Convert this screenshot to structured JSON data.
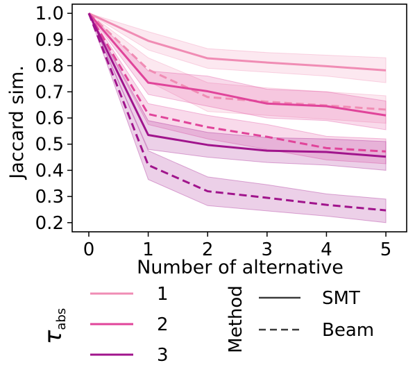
{
  "chart_data": {
    "type": "line",
    "xlabel": "Number of alternative",
    "ylabel": "Jaccard sim.",
    "xlim": [
      -0.28,
      5.35
    ],
    "ylim": [
      0.165,
      1.035
    ],
    "xticks": [
      0,
      1,
      2,
      3,
      4,
      5
    ],
    "xtick_labels": [
      "0",
      "1",
      "2",
      "3",
      "4",
      "5"
    ],
    "yticks": [
      0.2,
      0.3,
      0.4,
      0.5,
      0.6,
      0.7,
      0.8,
      0.9,
      1.0
    ],
    "ytick_labels": [
      "0.2",
      "0.3",
      "0.4",
      "0.5",
      "0.6",
      "0.7",
      "0.8",
      "0.9",
      "1.0"
    ],
    "grid": false,
    "x": [
      0,
      1,
      2,
      3,
      4,
      5
    ],
    "series": [
      {
        "tau": "1",
        "method": "SMT",
        "color": "#f08cb4",
        "dash": "solid",
        "values": [
          1.0,
          0.895,
          0.828,
          0.812,
          0.798,
          0.782
        ],
        "lower": [
          1.0,
          0.86,
          0.79,
          0.775,
          0.76,
          0.735
        ],
        "upper": [
          1.0,
          0.93,
          0.865,
          0.85,
          0.84,
          0.83
        ]
      },
      {
        "tau": "1",
        "method": "Beam",
        "color": "#f08cb4",
        "dash": "dashed",
        "values": [
          1.0,
          0.785,
          0.68,
          0.662,
          0.648,
          0.632
        ],
        "lower": [
          1.0,
          0.74,
          0.625,
          0.61,
          0.595,
          0.58
        ],
        "upper": [
          1.0,
          0.83,
          0.735,
          0.715,
          0.7,
          0.685
        ]
      },
      {
        "tau": "2",
        "method": "SMT",
        "color": "#e0449a",
        "dash": "solid",
        "values": [
          1.0,
          0.735,
          0.702,
          0.655,
          0.645,
          0.61
        ],
        "lower": [
          1.0,
          0.69,
          0.645,
          0.6,
          0.59,
          0.555
        ],
        "upper": [
          1.0,
          0.78,
          0.76,
          0.71,
          0.7,
          0.665
        ]
      },
      {
        "tau": "2",
        "method": "Beam",
        "color": "#e0449a",
        "dash": "dashed",
        "values": [
          1.0,
          0.615,
          0.565,
          0.528,
          0.485,
          0.472
        ],
        "lower": [
          1.0,
          0.575,
          0.52,
          0.48,
          0.44,
          0.425
        ],
        "upper": [
          1.0,
          0.655,
          0.61,
          0.575,
          0.53,
          0.52
        ]
      },
      {
        "tau": "3",
        "method": "SMT",
        "color": "#a0148c",
        "dash": "solid",
        "values": [
          1.0,
          0.535,
          0.497,
          0.475,
          0.47,
          0.452
        ],
        "lower": [
          1.0,
          0.48,
          0.45,
          0.43,
          0.42,
          0.4
        ],
        "upper": [
          1.0,
          0.59,
          0.545,
          0.525,
          0.52,
          0.51
        ]
      },
      {
        "tau": "3",
        "method": "Beam",
        "color": "#a0148c",
        "dash": "dashed",
        "values": [
          1.0,
          0.42,
          0.32,
          0.295,
          0.268,
          0.247
        ],
        "lower": [
          1.0,
          0.365,
          0.265,
          0.245,
          0.225,
          0.2
        ],
        "upper": [
          1.0,
          0.475,
          0.375,
          0.345,
          0.31,
          0.29
        ]
      }
    ],
    "legend": {
      "placement": "below",
      "tau_title": "τ",
      "tau_subscript": "abs",
      "tau_entries": [
        {
          "label": "1",
          "color": "#f08cb4"
        },
        {
          "label": "2",
          "color": "#e0449a"
        },
        {
          "label": "3",
          "color": "#a0148c"
        }
      ],
      "method_title": "Method",
      "method_entries": [
        {
          "label": "SMT",
          "dash": "solid",
          "color": "#3a3a3a"
        },
        {
          "label": "Beam",
          "dash": "dashed",
          "color": "#3a3a3a"
        }
      ]
    }
  }
}
